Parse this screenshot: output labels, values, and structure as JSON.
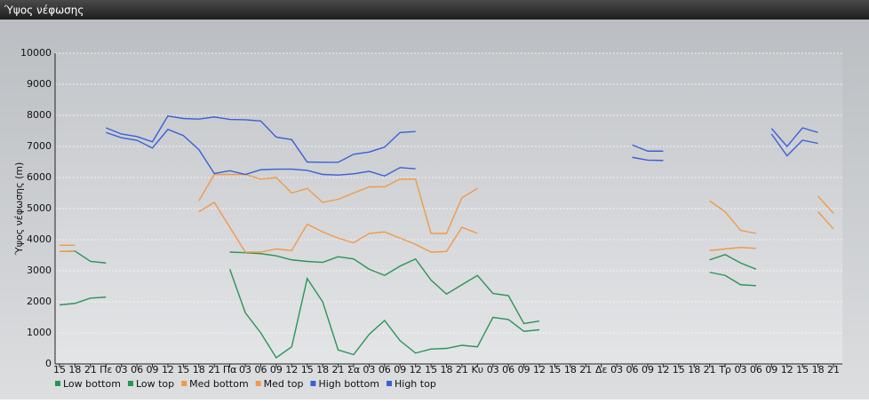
{
  "chart_data": {
    "type": "line",
    "title": "Ύψος νέφωσης",
    "y_label": "Ύψος νέφωσης (m)",
    "categories": [
      "15",
      "18",
      "21",
      "Πε",
      "03",
      "06",
      "09",
      "12",
      "15",
      "18",
      "21",
      "Πα",
      "03",
      "06",
      "09",
      "12",
      "15",
      "18",
      "21",
      "Σα",
      "03",
      "06",
      "09",
      "12",
      "15",
      "18",
      "21",
      "Κυ",
      "03",
      "06",
      "09",
      "12",
      "15",
      "18",
      "21",
      "Δε",
      "03",
      "06",
      "09",
      "12",
      "15",
      "18",
      "21",
      "Τρ",
      "03",
      "06",
      "09",
      "12",
      "15",
      "18",
      "21"
    ],
    "ylim": [
      0,
      10000
    ],
    "yticks": [
      0,
      1000,
      2000,
      3000,
      4000,
      5000,
      6000,
      7000,
      8000,
      9000,
      10000
    ],
    "grid": true,
    "series": [
      {
        "name": "Low bottom",
        "color": "#2a9458",
        "values": [
          1900,
          1950,
          2120,
          2150,
          null,
          null,
          null,
          null,
          null,
          null,
          null,
          3050,
          1650,
          1000,
          200,
          550,
          2750,
          2000,
          450,
          300,
          950,
          1400,
          750,
          350,
          480,
          500,
          600,
          550,
          1500,
          1430,
          1050,
          1100,
          null,
          null,
          null,
          null,
          null,
          null,
          null,
          null,
          null,
          null,
          2950,
          2850,
          2550,
          2520,
          null,
          null,
          null,
          null,
          null
        ]
      },
      {
        "name": "Low top",
        "color": "#2a9458",
        "values": [
          3620,
          3630,
          3300,
          3250,
          null,
          null,
          null,
          null,
          null,
          null,
          null,
          3600,
          3580,
          3550,
          3480,
          3350,
          3300,
          3270,
          3450,
          3380,
          3050,
          2850,
          3150,
          3380,
          2700,
          2250,
          2550,
          2850,
          2270,
          2200,
          1300,
          1380,
          null,
          null,
          null,
          null,
          null,
          null,
          null,
          null,
          null,
          null,
          3350,
          3520,
          3250,
          3050,
          null,
          null,
          null,
          null,
          null
        ]
      },
      {
        "name": "Med bottom",
        "color": "#f09a4a",
        "values": [
          3620,
          3620,
          null,
          null,
          null,
          null,
          null,
          null,
          null,
          4900,
          5200,
          4400,
          3600,
          3600,
          3700,
          3650,
          4500,
          4250,
          4050,
          3900,
          4200,
          4250,
          4050,
          3850,
          3600,
          3620,
          4400,
          4200,
          null,
          null,
          null,
          null,
          null,
          null,
          null,
          null,
          null,
          null,
          null,
          null,
          null,
          null,
          3650,
          3700,
          3750,
          3720,
          null,
          null,
          null,
          4900,
          4350
        ]
      },
      {
        "name": "Med top",
        "color": "#f09a4a",
        "values": [
          3820,
          3820,
          null,
          null,
          null,
          null,
          null,
          null,
          null,
          5250,
          6100,
          6100,
          6100,
          5950,
          6000,
          5500,
          5650,
          5200,
          5300,
          5500,
          5700,
          5700,
          5950,
          5950,
          4200,
          4200,
          5350,
          5650,
          null,
          null,
          null,
          null,
          null,
          null,
          null,
          null,
          null,
          null,
          null,
          null,
          null,
          null,
          5250,
          4900,
          4300,
          4200,
          null,
          null,
          null,
          5400,
          4850
        ]
      },
      {
        "name": "High bottom",
        "color": "#3a5fd6",
        "values": [
          null,
          null,
          null,
          7450,
          7280,
          7200,
          6950,
          7550,
          7350,
          6900,
          6130,
          6220,
          6100,
          6250,
          6270,
          6270,
          6230,
          6100,
          6080,
          6120,
          6200,
          6050,
          6320,
          6280,
          null,
          null,
          null,
          null,
          null,
          null,
          null,
          null,
          null,
          null,
          null,
          null,
          null,
          6650,
          6560,
          6550,
          null,
          null,
          null,
          null,
          null,
          null,
          7400,
          6700,
          7200,
          7100,
          null
        ]
      },
      {
        "name": "High top",
        "color": "#3a5fd6",
        "values": [
          null,
          null,
          null,
          7600,
          7400,
          7320,
          7150,
          7980,
          7900,
          7880,
          7950,
          7870,
          7860,
          7820,
          7300,
          7220,
          6500,
          6490,
          6490,
          6750,
          6820,
          6980,
          7450,
          7480,
          null,
          null,
          null,
          null,
          null,
          null,
          null,
          null,
          null,
          null,
          null,
          null,
          null,
          7050,
          6850,
          6850,
          null,
          null,
          null,
          null,
          null,
          null,
          7580,
          7000,
          7600,
          7450,
          null
        ]
      }
    ]
  }
}
